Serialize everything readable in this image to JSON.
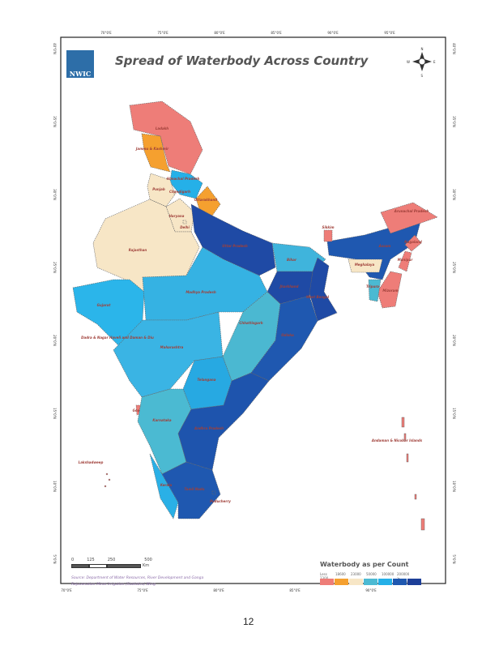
{
  "title": "Spread of Waterbody Across Country",
  "logo_text": "NWIC",
  "compass": {
    "n": "N",
    "s": "S",
    "e": "E",
    "w": "W"
  },
  "top_ticks": [
    "70°0'E",
    "75°0'E",
    "80°0'E",
    "85°0'E",
    "90°0'E",
    "95°0'E"
  ],
  "bottom_ticks": [
    "70°0'E",
    "75°0'E",
    "80°0'E",
    "85°0'E",
    "90°0'E"
  ],
  "left_ticks": [
    "40°0'N",
    "35°0'N",
    "30°0'N",
    "25°0'N",
    "20°0'N",
    "15°0'N",
    "10°0'N",
    "5°0'N"
  ],
  "scale_bar": {
    "labels": [
      "0",
      "125",
      "250",
      "500"
    ],
    "unit": "Km"
  },
  "source": "Source: Department of Water Resources, River Development and Ganga Rejuvenation Minor Irrigation (Statistics) Wing",
  "legend": {
    "title": "Waterbody as per Count",
    "labels": [
      "Less 2300",
      "18600",
      "23000",
      "50000",
      "100000",
      "200000 > 250000"
    ],
    "colors": [
      "#ee7d78",
      "#f5a02f",
      "#f7e6c6",
      "#4cbad3",
      "#25b0e8",
      "#1f58b0",
      "#1d3f98"
    ]
  },
  "states": [
    {
      "name": "Ladakh",
      "color": "#ee7d78"
    },
    {
      "name": "Jammu & Kashmir",
      "color": "#f5a02f"
    },
    {
      "name": "Himachal Pradesh",
      "color": "#25b0e8"
    },
    {
      "name": "Punjab",
      "color": "#f7e6c6"
    },
    {
      "name": "Chandigarh",
      "color": "#f7e6c6"
    },
    {
      "name": "Uttarakhand",
      "color": "#f5a02f"
    },
    {
      "name": "Haryana",
      "color": "#f7e6c6"
    },
    {
      "name": "Delhi",
      "color": "#f7e6c6"
    },
    {
      "name": "Rajasthan",
      "color": "#f7e6c6"
    },
    {
      "name": "Uttar Pradesh",
      "color": "#1f4aa5"
    },
    {
      "name": "Bihar",
      "color": "#3fb4dc"
    },
    {
      "name": "Jharkhand",
      "color": "#1f4aa5"
    },
    {
      "name": "West Bengal",
      "color": "#1f4aa5"
    },
    {
      "name": "Gujarat",
      "color": "#2bb5ea"
    },
    {
      "name": "Madhya Pradesh",
      "color": "#35b2e3"
    },
    {
      "name": "Chhattisgarh",
      "color": "#4bb8d1"
    },
    {
      "name": "Odisha",
      "color": "#1f58b0"
    },
    {
      "name": "Dadra & Nagar Haveli and Daman & Diu",
      "color": "#2bb5ea"
    },
    {
      "name": "Maharashtra",
      "color": "#3ab4e4"
    },
    {
      "name": "Telangana",
      "color": "#27a9e2"
    },
    {
      "name": "Goa",
      "color": "#ee7d78"
    },
    {
      "name": "Karnataka",
      "color": "#4bbad2"
    },
    {
      "name": "Andhra Pradesh",
      "color": "#1e54ad"
    },
    {
      "name": "Kerala",
      "color": "#2ab0e6"
    },
    {
      "name": "Tamil Nadu",
      "color": "#1f58b0"
    },
    {
      "name": "Puducherry",
      "color": "#1f58b0"
    },
    {
      "name": "Assam",
      "color": "#1f58b0"
    },
    {
      "name": "Arunachal Pradesh",
      "color": "#ee7d78"
    },
    {
      "name": "Meghalaya",
      "color": "#f7e6c6"
    },
    {
      "name": "Nagaland",
      "color": "#ee7d78"
    },
    {
      "name": "Manipur",
      "color": "#ee7d78"
    },
    {
      "name": "Mizoram",
      "color": "#ee7d78"
    },
    {
      "name": "Tripura",
      "color": "#4bbad2"
    },
    {
      "name": "Sikkim",
      "color": "#ee7d78"
    },
    {
      "name": "Lakshadweep",
      "color": "#ee7d78"
    },
    {
      "name": "Andaman & Nicobar Islands",
      "color": "#ee7d78"
    }
  ],
  "page_number": "12"
}
